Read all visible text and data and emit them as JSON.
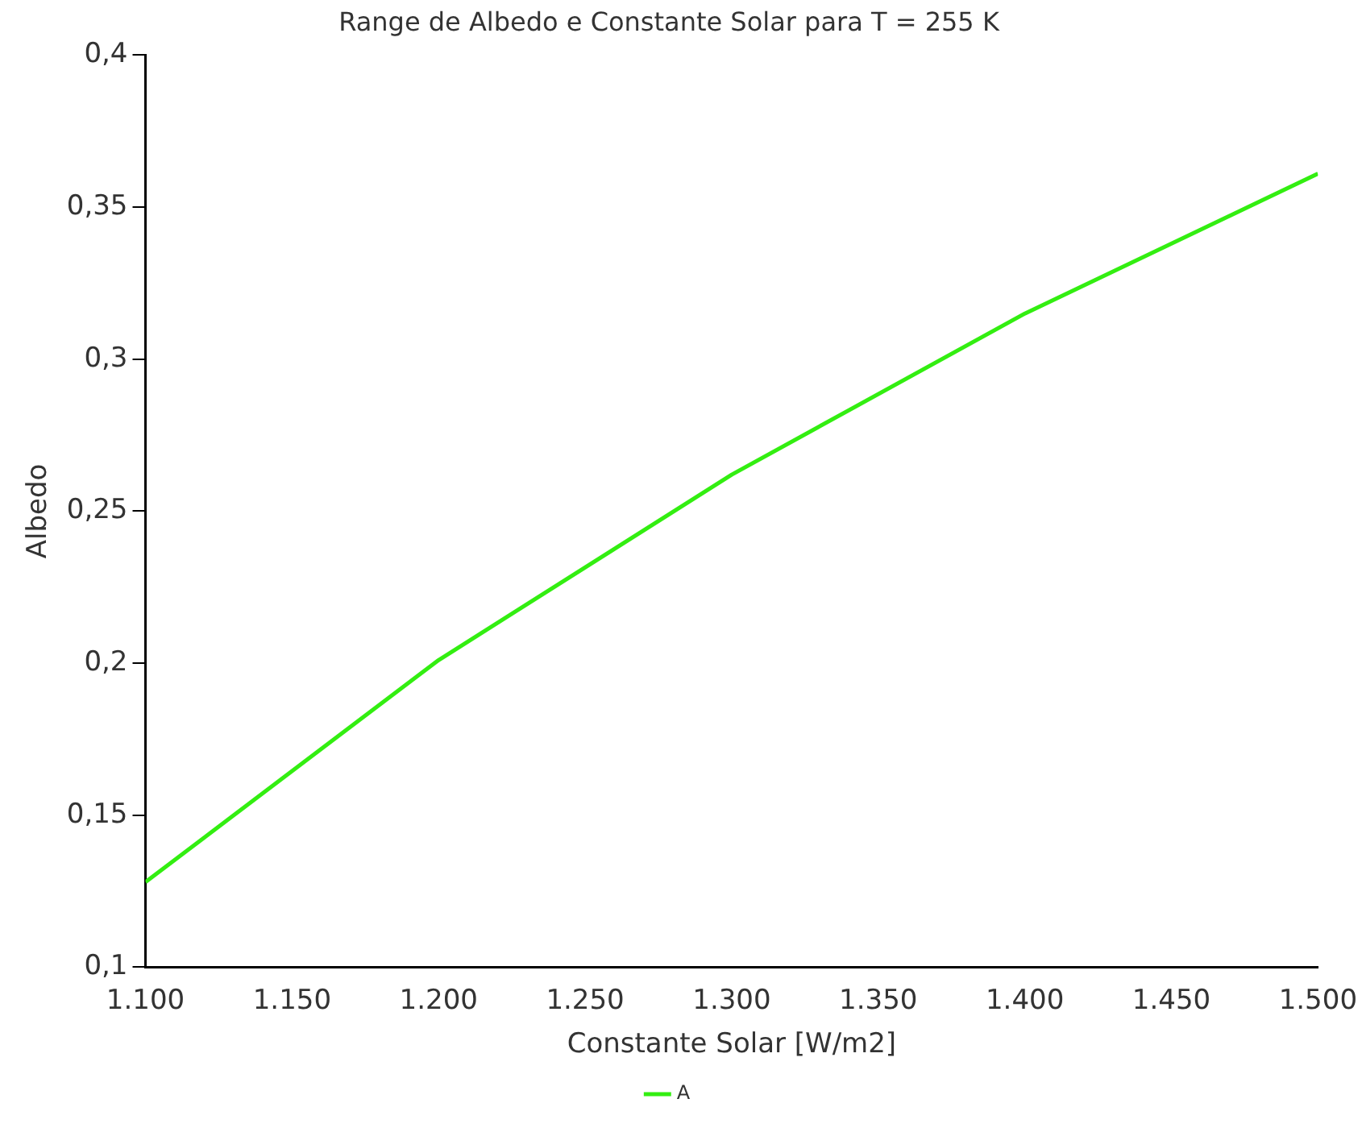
{
  "chart_data": {
    "type": "line",
    "title": "Range de Albedo e Constante Solar para T = 255 K",
    "xlabel": "Constante Solar [W/m2]",
    "ylabel": "Albedo",
    "x": [
      1100,
      1200,
      1300,
      1400,
      1500
    ],
    "series": [
      {
        "name": "A",
        "color": "#33ee11",
        "values": [
          0.128,
          0.201,
          0.262,
          0.315,
          0.361
        ]
      }
    ],
    "xlim": [
      1100,
      1500
    ],
    "ylim": [
      0.1,
      0.4
    ],
    "xticks": [
      {
        "value": 1100,
        "label": "1.100"
      },
      {
        "value": 1150,
        "label": "1.150"
      },
      {
        "value": 1200,
        "label": "1.200"
      },
      {
        "value": 1250,
        "label": "1.250"
      },
      {
        "value": 1300,
        "label": "1.300"
      },
      {
        "value": 1350,
        "label": "1.350"
      },
      {
        "value": 1400,
        "label": "1.400"
      },
      {
        "value": 1450,
        "label": "1.450"
      },
      {
        "value": 1500,
        "label": "1.500"
      }
    ],
    "yticks": [
      {
        "value": 0.1,
        "label": "0,1"
      },
      {
        "value": 0.15,
        "label": "0,15"
      },
      {
        "value": 0.2,
        "label": "0,2"
      },
      {
        "value": 0.25,
        "label": "0,25"
      },
      {
        "value": 0.3,
        "label": "0,3"
      },
      {
        "value": 0.35,
        "label": "0,35"
      },
      {
        "value": 0.4,
        "label": "0,4"
      }
    ],
    "grid": false,
    "legend": "bottom",
    "marker": "none",
    "line_style": "solid"
  }
}
